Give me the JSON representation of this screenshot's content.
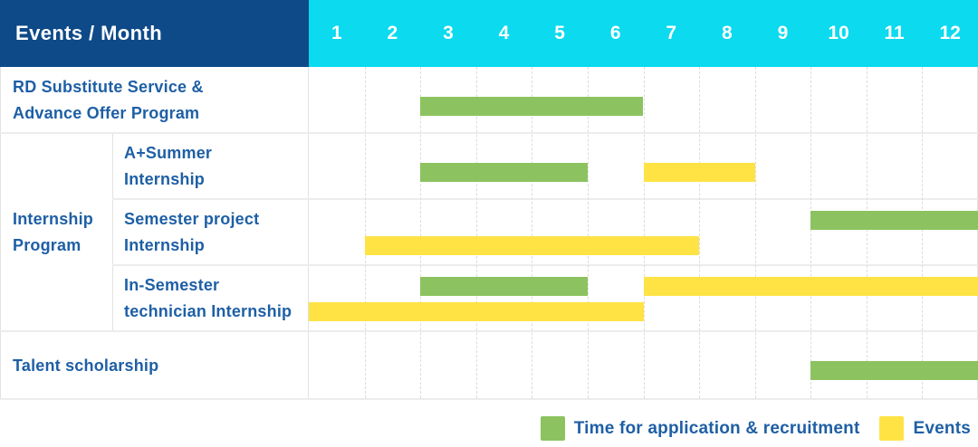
{
  "header": {
    "title": "Events / Month",
    "months": [
      "1",
      "2",
      "3",
      "4",
      "5",
      "6",
      "7",
      "8",
      "9",
      "10",
      "11",
      "12"
    ]
  },
  "group_label": "Internship\nProgram",
  "legend": [
    {
      "series": "application",
      "label": "Time for application & recruitment",
      "color": "#8CC360"
    },
    {
      "series": "events",
      "label": "Events",
      "color": "#FFE345"
    }
  ],
  "colors": {
    "header_navy": "#0E4A88",
    "header_cyan": "#0BDAEF",
    "bar_green": "#8CC360",
    "bar_yellow": "#FFE345",
    "text_blue": "#1E5FA5",
    "grid_line": "#ECECEC"
  },
  "chart_data": {
    "type": "gantt",
    "title": "Events / Month",
    "x_categories": [
      "1",
      "2",
      "3",
      "4",
      "5",
      "6",
      "7",
      "8",
      "9",
      "10",
      "11",
      "12"
    ],
    "x_unit": "month",
    "legend_entries": [
      "Time for application & recruitment",
      "Events"
    ],
    "rows": [
      {
        "label": "RD Substitute Service & Advance Offer Program",
        "display_label": "RD Substitute Service &\nAdvance Offer Program",
        "group": null,
        "bars": [
          {
            "series": "application",
            "start_month": 3,
            "end_month": 6,
            "lane": "single"
          }
        ]
      },
      {
        "label": "A+Summer Internship",
        "display_label": "A+Summer\nInternship",
        "group": "Internship Program",
        "bars": [
          {
            "series": "application",
            "start_month": 3,
            "end_month": 5,
            "lane": "single"
          },
          {
            "series": "events",
            "start_month": 7,
            "end_month": 8,
            "lane": "single"
          }
        ]
      },
      {
        "label": "Semester project Internship",
        "display_label": "Semester project\nInternship",
        "group": "Internship Program",
        "bars": [
          {
            "series": "application",
            "start_month": 10,
            "end_month": 12,
            "lane": "top"
          },
          {
            "series": "events",
            "start_month": 2,
            "end_month": 7,
            "lane": "bottom"
          }
        ]
      },
      {
        "label": "In-Semester technician Internship",
        "display_label": "In-Semester\ntechnician Internship",
        "group": "Internship Program",
        "bars": [
          {
            "series": "application",
            "start_month": 3,
            "end_month": 5,
            "lane": "top"
          },
          {
            "series": "events",
            "start_month": 7,
            "end_month": 12,
            "lane": "top"
          },
          {
            "series": "events",
            "start_month": 1,
            "end_month": 6,
            "lane": "bottom"
          }
        ]
      },
      {
        "label": "Talent scholarship",
        "display_label": "Talent scholarship",
        "group": null,
        "bars": [
          {
            "series": "application",
            "start_month": 10,
            "end_month": 12,
            "lane": "single"
          }
        ]
      }
    ]
  }
}
